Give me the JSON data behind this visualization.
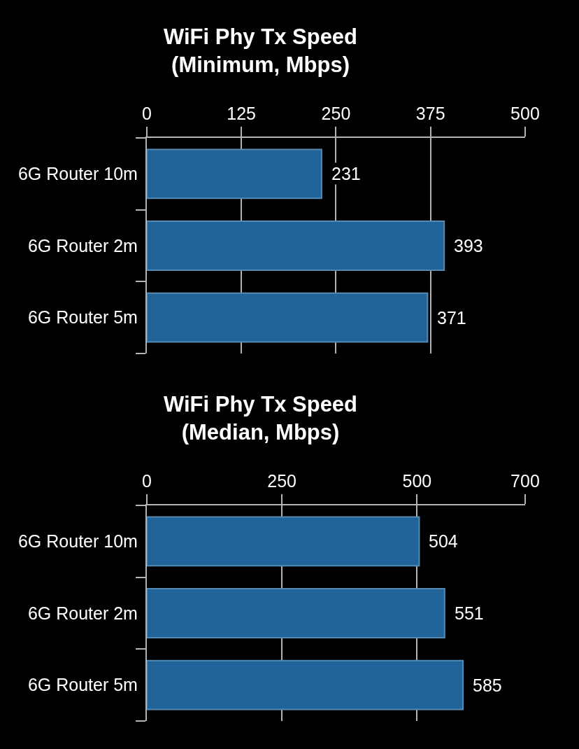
{
  "chart_data": [
    {
      "type": "bar",
      "orientation": "horizontal",
      "title": "WiFi Phy Tx Speed\n(Minimum, Mbps)",
      "categories": [
        "6G Router 10m",
        "6G Router 2m",
        "6G Router 5m"
      ],
      "values": [
        231,
        393,
        371
      ],
      "color": "#1f6399",
      "xlim": [
        0,
        500
      ],
      "xticks": [
        0,
        125,
        250,
        375,
        500
      ],
      "grid": "x",
      "data_labels": true
    },
    {
      "type": "bar",
      "orientation": "horizontal",
      "title": "WiFi Phy Tx Speed\n(Median, Mbps)",
      "categories": [
        "6G Router 10m",
        "6G Router 2m",
        "6G Router 5m"
      ],
      "values": [
        504,
        551,
        585
      ],
      "color": "#1f6399",
      "xlim": [
        0,
        700
      ],
      "xticks": [
        0,
        250,
        500,
        700
      ],
      "grid": "x",
      "data_labels": true
    }
  ]
}
